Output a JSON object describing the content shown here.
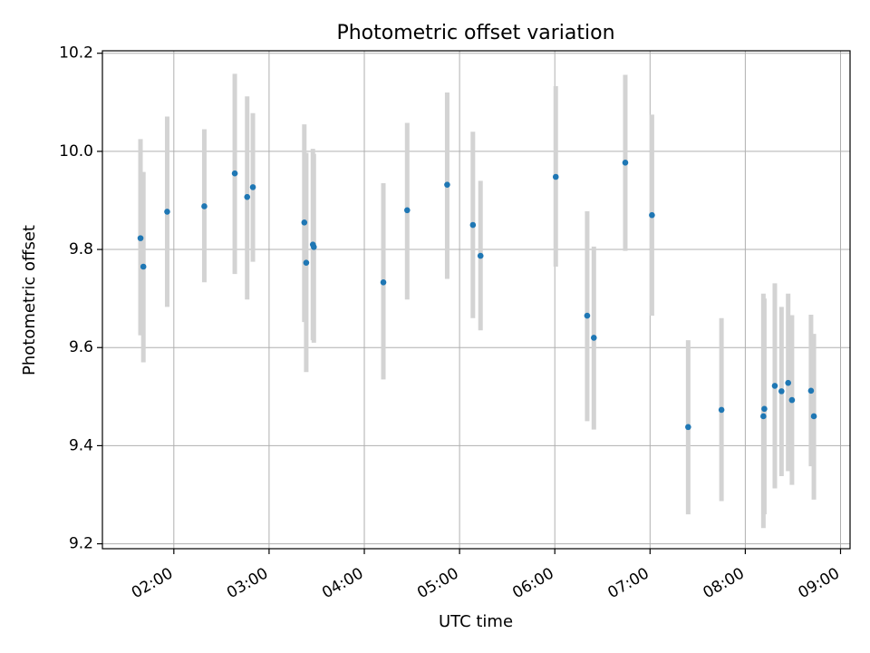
{
  "chart_data": {
    "type": "scatter",
    "title": "Photometric offset variation",
    "xlabel": "UTC time",
    "ylabel": "Photometric offset",
    "x_unit": "hours UTC",
    "xlim": [
      1.25,
      9.1
    ],
    "ylim": [
      9.19,
      10.205
    ],
    "x_ticks": [
      2,
      3,
      4,
      5,
      6,
      7,
      8,
      9
    ],
    "x_tick_labels": [
      "02:00",
      "03:00",
      "04:00",
      "05:00",
      "06:00",
      "07:00",
      "08:00",
      "09:00"
    ],
    "y_ticks": [
      9.2,
      9.4,
      9.6,
      9.8,
      10.0,
      10.2
    ],
    "y_tick_labels": [
      "9.2",
      "9.4",
      "9.6",
      "9.8",
      "10.0",
      "10.2"
    ],
    "grid": true,
    "marker_color": "#1f77b4",
    "errorbar_color": "#d3d3d3",
    "series": [
      {
        "points": [
          {
            "x": 1.65,
            "y": 9.823,
            "low": 9.625,
            "high": 10.025
          },
          {
            "x": 1.68,
            "y": 9.765,
            "low": 9.57,
            "high": 9.958
          },
          {
            "x": 1.93,
            "y": 9.877,
            "low": 9.683,
            "high": 10.071
          },
          {
            "x": 2.32,
            "y": 9.888,
            "low": 9.733,
            "high": 10.045
          },
          {
            "x": 2.64,
            "y": 9.955,
            "low": 9.75,
            "high": 10.158
          },
          {
            "x": 2.77,
            "y": 9.907,
            "low": 9.698,
            "high": 10.112
          },
          {
            "x": 2.83,
            "y": 9.927,
            "low": 9.775,
            "high": 10.078
          },
          {
            "x": 3.37,
            "y": 9.855,
            "low": 9.652,
            "high": 10.055
          },
          {
            "x": 3.39,
            "y": 9.773,
            "low": 9.55,
            "high": 9.997
          },
          {
            "x": 3.46,
            "y": 9.81,
            "low": 9.615,
            "high": 10.005
          },
          {
            "x": 3.47,
            "y": 9.805,
            "low": 9.61,
            "high": 9.995
          },
          {
            "x": 4.2,
            "y": 9.733,
            "low": 9.535,
            "high": 9.935
          },
          {
            "x": 4.45,
            "y": 9.88,
            "low": 9.698,
            "high": 10.058
          },
          {
            "x": 4.87,
            "y": 9.932,
            "low": 9.74,
            "high": 10.12
          },
          {
            "x": 5.14,
            "y": 9.85,
            "low": 9.66,
            "high": 10.04
          },
          {
            "x": 5.22,
            "y": 9.787,
            "low": 9.635,
            "high": 9.94
          },
          {
            "x": 6.01,
            "y": 9.948,
            "low": 9.765,
            "high": 10.133
          },
          {
            "x": 6.34,
            "y": 9.665,
            "low": 9.45,
            "high": 9.878
          },
          {
            "x": 6.41,
            "y": 9.62,
            "low": 9.433,
            "high": 9.806
          },
          {
            "x": 6.74,
            "y": 9.977,
            "low": 9.797,
            "high": 10.156
          },
          {
            "x": 7.02,
            "y": 9.87,
            "low": 9.665,
            "high": 10.075
          },
          {
            "x": 7.4,
            "y": 9.438,
            "low": 9.26,
            "high": 9.615
          },
          {
            "x": 7.75,
            "y": 9.473,
            "low": 9.287,
            "high": 9.66
          },
          {
            "x": 8.19,
            "y": 9.46,
            "low": 9.232,
            "high": 9.71
          },
          {
            "x": 8.2,
            "y": 9.475,
            "low": 9.26,
            "high": 9.7
          },
          {
            "x": 8.31,
            "y": 9.522,
            "low": 9.313,
            "high": 9.731
          },
          {
            "x": 8.38,
            "y": 9.511,
            "low": 9.338,
            "high": 9.683
          },
          {
            "x": 8.45,
            "y": 9.528,
            "low": 9.348,
            "high": 9.71
          },
          {
            "x": 8.49,
            "y": 9.493,
            "low": 9.32,
            "high": 9.666
          },
          {
            "x": 8.69,
            "y": 9.512,
            "low": 9.358,
            "high": 9.667
          },
          {
            "x": 8.72,
            "y": 9.46,
            "low": 9.29,
            "high": 9.628
          }
        ]
      }
    ]
  }
}
